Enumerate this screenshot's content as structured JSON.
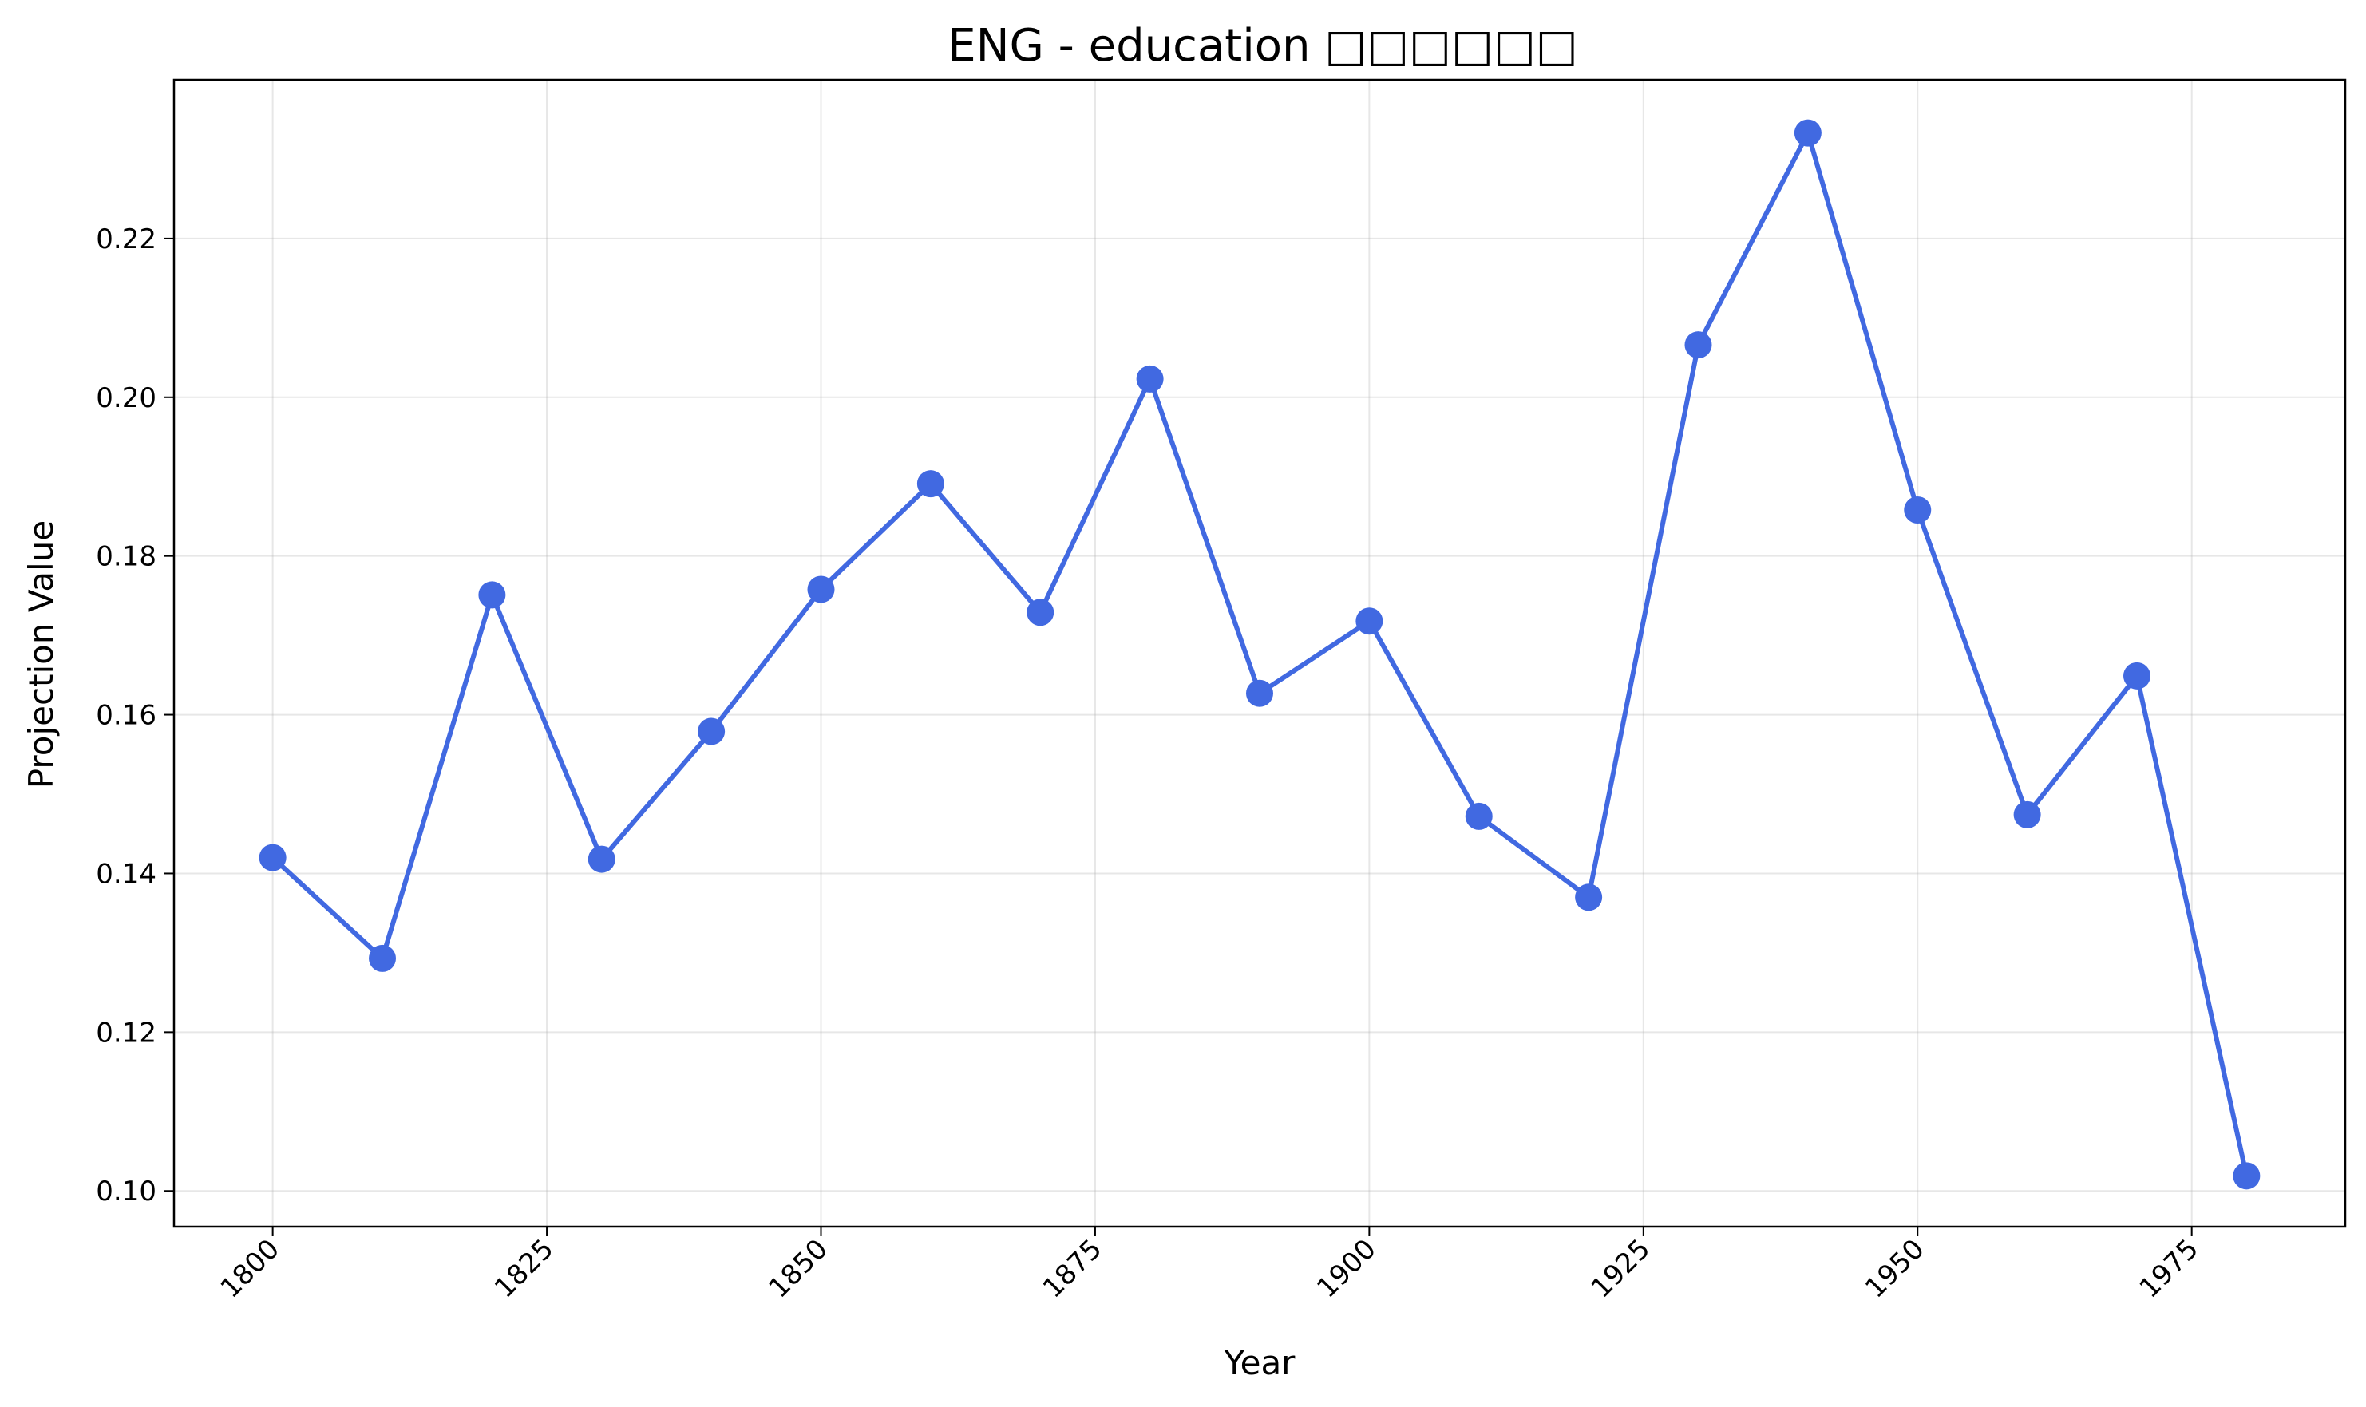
{
  "chart_data": {
    "type": "line",
    "title": "ENG - education □□□□□□",
    "xlabel": "Year",
    "ylabel": "Projection Value",
    "xlim": [
      1791,
      1989
    ],
    "ylim": [
      0.0955,
      0.24
    ],
    "x_ticks": [
      1800,
      1825,
      1850,
      1875,
      1900,
      1925,
      1950,
      1975
    ],
    "x_tick_labels": [
      "1800",
      "1825",
      "1850",
      "1875",
      "1900",
      "1925",
      "1950",
      "1975"
    ],
    "y_ticks": [
      0.1,
      0.12,
      0.14,
      0.16,
      0.18,
      0.2,
      0.22
    ],
    "y_tick_labels": [
      "0.10",
      "0.12",
      "0.14",
      "0.16",
      "0.18",
      "0.20",
      "0.22"
    ],
    "grid": true,
    "color": "#4169e1",
    "series": [
      {
        "x": [
          1800,
          1810,
          1820,
          1830,
          1840,
          1850,
          1860,
          1870,
          1880,
          1890,
          1900,
          1910,
          1920,
          1930,
          1940,
          1950,
          1960,
          1970,
          1980
        ],
        "values": [
          0.142,
          0.1293,
          0.1751,
          0.1418,
          0.1579,
          0.1758,
          0.1891,
          0.1729,
          0.2023,
          0.1627,
          0.1718,
          0.1472,
          0.137,
          0.2066,
          0.2333,
          0.1858,
          0.1474,
          0.1649,
          0.1019
        ]
      }
    ]
  }
}
